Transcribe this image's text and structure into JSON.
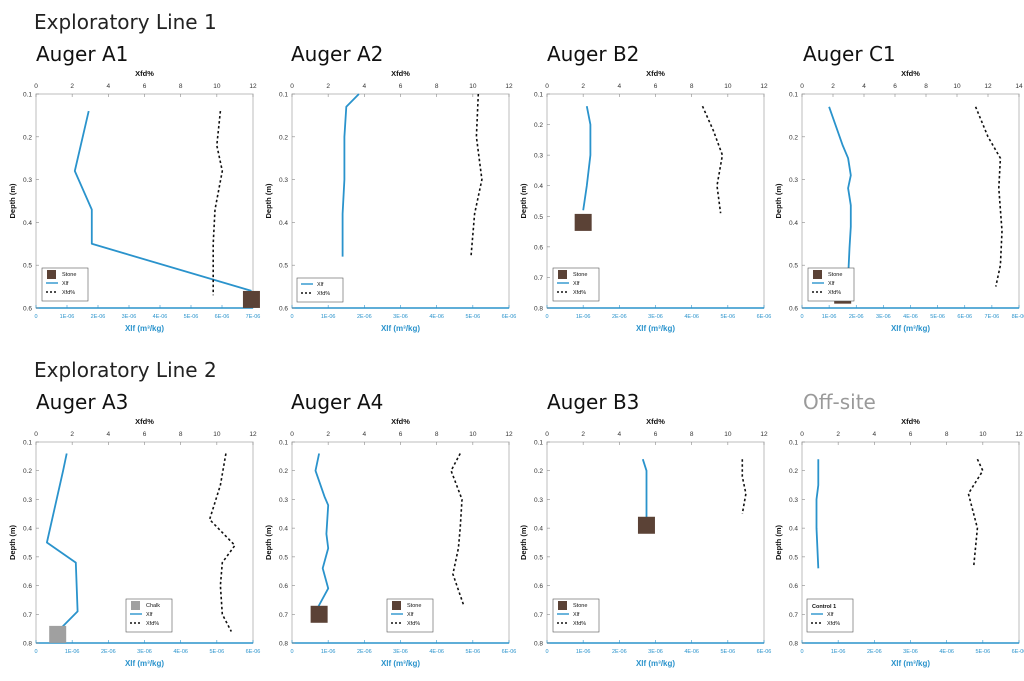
{
  "sections": [
    {
      "title": "Exploratory Line 1"
    },
    {
      "title": "Exploratory Line 2"
    }
  ],
  "colors": {
    "xlf": "#2a93cc",
    "xfd": "#111111",
    "stone": "#5b4236",
    "chalk": "#a0a0a0",
    "axis_bottom": "#2a93cc",
    "grid": "#bdbdbd"
  },
  "chart_data": [
    {
      "type": "line",
      "label": "Auger A1",
      "title": "Xfd%",
      "xlabel": "Xlf (m³/kg)",
      "ylabel": "Depth (m)",
      "x_bottom_ticks": [
        "0",
        "1E-06",
        "2E-06",
        "3E-06",
        "4E-06",
        "5E-06",
        "6E-06",
        "7E-06"
      ],
      "xlim_bottom": [
        0,
        7e-06
      ],
      "x_top_ticks": [
        "0",
        "2",
        "4",
        "6",
        "8",
        "10",
        "12"
      ],
      "xlim_top": [
        0,
        12
      ],
      "y_ticks": [
        "0.1",
        "0.2",
        "0.3",
        "0.4",
        "0.5",
        "0.6"
      ],
      "ylim": [
        0.1,
        0.6
      ],
      "series": [
        {
          "name": "Xlf",
          "axis": "bottom",
          "style": "solid",
          "points": [
            [
              1.7e-06,
              0.14
            ],
            [
              1.25e-06,
              0.28
            ],
            [
              1.8e-06,
              0.37
            ],
            [
              1.8e-06,
              0.45
            ],
            [
              6.95e-06,
              0.56
            ]
          ]
        },
        {
          "name": "Xfd%",
          "axis": "top",
          "style": "dashed",
          "points": [
            [
              10.2,
              0.14
            ],
            [
              10.0,
              0.22
            ],
            [
              10.3,
              0.28
            ],
            [
              9.9,
              0.37
            ],
            [
              9.8,
              0.45
            ],
            [
              9.8,
              0.53
            ],
            [
              9.8,
              0.57
            ]
          ]
        }
      ],
      "marker": {
        "name": "Stone",
        "x": 6.95e-06,
        "y": 0.58,
        "color": "#5b4236"
      },
      "legend": [
        "Stone",
        "Xlf",
        "Xfd%"
      ]
    },
    {
      "type": "line",
      "label": "Auger A2",
      "title": "Xfd%",
      "xlabel": "Xlf (m³/kg)",
      "ylabel": "Depth (m)",
      "x_bottom_ticks": [
        "0",
        "1E-06",
        "2E-06",
        "3E-06",
        "4E-06",
        "5E-06",
        "6E-06"
      ],
      "xlim_bottom": [
        0,
        6e-06
      ],
      "x_top_ticks": [
        "0",
        "2",
        "4",
        "6",
        "8",
        "10",
        "12"
      ],
      "xlim_top": [
        0,
        12
      ],
      "y_ticks": [
        "0.1",
        "0.2",
        "0.3",
        "0.4",
        "0.5",
        "0.6"
      ],
      "ylim": [
        0.1,
        0.6
      ],
      "series": [
        {
          "name": "Xlf",
          "axis": "bottom",
          "style": "solid",
          "points": [
            [
              1.85e-06,
              0.1
            ],
            [
              1.5e-06,
              0.13
            ],
            [
              1.45e-06,
              0.2
            ],
            [
              1.45e-06,
              0.3
            ],
            [
              1.4e-06,
              0.38
            ],
            [
              1.4e-06,
              0.48
            ]
          ]
        },
        {
          "name": "Xfd%",
          "axis": "top",
          "style": "dashed",
          "points": [
            [
              10.3,
              0.1
            ],
            [
              10.2,
              0.2
            ],
            [
              10.5,
              0.3
            ],
            [
              10.1,
              0.38
            ],
            [
              9.9,
              0.48
            ]
          ]
        }
      ],
      "legend": [
        "Xlf",
        "Xfd%"
      ]
    },
    {
      "type": "line",
      "label": "Auger B2",
      "title": "Xfd%",
      "xlabel": "Xlf (m³/kg)",
      "ylabel": "Depth (m)",
      "x_bottom_ticks": [
        "0",
        "1E-06",
        "2E-06",
        "3E-06",
        "4E-06",
        "5E-06",
        "6E-06"
      ],
      "xlim_bottom": [
        0,
        6e-06
      ],
      "x_top_ticks": [
        "0",
        "2",
        "4",
        "6",
        "8",
        "10",
        "12"
      ],
      "xlim_top": [
        0,
        12
      ],
      "y_ticks": [
        "0.1",
        "0.2",
        "0.3",
        "0.4",
        "0.5",
        "0.6",
        "0.7",
        "0.8"
      ],
      "ylim": [
        0.1,
        0.8
      ],
      "series": [
        {
          "name": "Xlf",
          "axis": "bottom",
          "style": "solid",
          "points": [
            [
              1.1e-06,
              0.14
            ],
            [
              1.2e-06,
              0.2
            ],
            [
              1.2e-06,
              0.3
            ],
            [
              1.1e-06,
              0.4
            ],
            [
              1e-06,
              0.48
            ]
          ]
        },
        {
          "name": "Xfd%",
          "axis": "top",
          "style": "dashed",
          "points": [
            [
              8.6,
              0.14
            ],
            [
              9.2,
              0.22
            ],
            [
              9.7,
              0.3
            ],
            [
              9.4,
              0.4
            ],
            [
              9.6,
              0.49
            ]
          ]
        }
      ],
      "marker": {
        "name": "Stone",
        "x": 1e-06,
        "y": 0.52,
        "color": "#5b4236"
      },
      "legend": [
        "Stone",
        "Xlf",
        "Xfd%"
      ]
    },
    {
      "type": "line",
      "label": "Auger C1",
      "title": "Xfd%",
      "xlabel": "Xlf (m³/kg)",
      "ylabel": "Depth (m)",
      "x_bottom_ticks": [
        "0",
        "1E-06",
        "2E-06",
        "3E-06",
        "4E-06",
        "5E-06",
        "6E-06",
        "7E-06",
        "8E-06"
      ],
      "xlim_bottom": [
        0,
        8e-06
      ],
      "x_top_ticks": [
        "0",
        "2",
        "4",
        "6",
        "8",
        "10",
        "12",
        "14"
      ],
      "xlim_top": [
        0,
        14
      ],
      "y_ticks": [
        "0.1",
        "0.2",
        "0.3",
        "0.4",
        "0.5",
        "0.6"
      ],
      "ylim": [
        0.1,
        0.6
      ],
      "series": [
        {
          "name": "Xlf",
          "axis": "bottom",
          "style": "solid",
          "points": [
            [
              1e-06,
              0.13
            ],
            [
              1.5e-06,
              0.22
            ],
            [
              1.7e-06,
              0.25
            ],
            [
              1.8e-06,
              0.29
            ],
            [
              1.7e-06,
              0.32
            ],
            [
              1.8e-06,
              0.36
            ],
            [
              1.8e-06,
              0.41
            ],
            [
              1.75e-06,
              0.46
            ],
            [
              1.7e-06,
              0.53
            ],
            [
              1.6e-06,
              0.55
            ]
          ]
        },
        {
          "name": "Xfd%",
          "axis": "top",
          "style": "dashed",
          "points": [
            [
              11.2,
              0.13
            ],
            [
              12.0,
              0.2
            ],
            [
              12.8,
              0.25
            ],
            [
              12.7,
              0.32
            ],
            [
              12.9,
              0.42
            ],
            [
              12.8,
              0.5
            ],
            [
              12.5,
              0.55
            ]
          ]
        }
      ],
      "marker": {
        "name": "Stone",
        "x": 1.5e-06,
        "y": 0.57,
        "color": "#5b4236"
      },
      "legend": [
        "Stone",
        "Xlf",
        "Xfd%"
      ]
    },
    {
      "type": "line",
      "label": "Auger A3",
      "title": "Xfd%",
      "xlabel": "Xlf (m³/kg)",
      "ylabel": "Depth (m)",
      "x_bottom_ticks": [
        "0",
        "1E-06",
        "2E-06",
        "3E-06",
        "4E-06",
        "5E-06",
        "6E-06"
      ],
      "xlim_bottom": [
        0,
        6e-06
      ],
      "x_top_ticks": [
        "0",
        "2",
        "4",
        "6",
        "8",
        "10",
        "12"
      ],
      "xlim_top": [
        0,
        12
      ],
      "y_ticks": [
        "0.1",
        "0.2",
        "0.3",
        "0.4",
        "0.5",
        "0.6",
        "0.7",
        "0.8"
      ],
      "ylim": [
        0.1,
        0.8
      ],
      "series": [
        {
          "name": "Xlf",
          "axis": "bottom",
          "style": "solid",
          "points": [
            [
              8.5e-07,
              0.14
            ],
            [
              7.5e-07,
              0.2
            ],
            [
              3e-07,
              0.45
            ],
            [
              1.1e-06,
              0.52
            ],
            [
              1.15e-06,
              0.69
            ],
            [
              6e-07,
              0.76
            ]
          ]
        },
        {
          "name": "Xfd%",
          "axis": "top",
          "style": "dashed",
          "points": [
            [
              10.5,
              0.14
            ],
            [
              10.2,
              0.25
            ],
            [
              9.6,
              0.37
            ],
            [
              11.0,
              0.46
            ],
            [
              10.3,
              0.52
            ],
            [
              10.2,
              0.6
            ],
            [
              10.3,
              0.7
            ],
            [
              10.8,
              0.76
            ]
          ]
        }
      ],
      "marker": {
        "name": "Chalk",
        "x": 6e-07,
        "y": 0.77,
        "color": "#a0a0a0"
      },
      "legend": [
        "Chalk",
        "Xlf",
        "Xfd%"
      ]
    },
    {
      "type": "line",
      "label": "Auger A4",
      "title": "Xfd%",
      "xlabel": "Xlf (m³/kg)",
      "ylabel": "Depth (m)",
      "x_bottom_ticks": [
        "0",
        "1E-06",
        "2E-06",
        "3E-06",
        "4E-06",
        "5E-06",
        "6E-06"
      ],
      "xlim_bottom": [
        0,
        6e-06
      ],
      "x_top_ticks": [
        "0",
        "2",
        "4",
        "6",
        "8",
        "10",
        "12"
      ],
      "xlim_top": [
        0,
        12
      ],
      "y_ticks": [
        "0.1",
        "0.2",
        "0.3",
        "0.4",
        "0.5",
        "0.6",
        "0.7",
        "0.8"
      ],
      "ylim": [
        0.1,
        0.8
      ],
      "series": [
        {
          "name": "Xlf",
          "axis": "bottom",
          "style": "solid",
          "points": [
            [
              7.5e-07,
              0.14
            ],
            [
              6.5e-07,
              0.2
            ],
            [
              9e-07,
              0.29
            ],
            [
              1e-06,
              0.32
            ],
            [
              9.5e-07,
              0.42
            ],
            [
              1e-06,
              0.47
            ],
            [
              8.5e-07,
              0.54
            ],
            [
              1e-06,
              0.61
            ],
            [
              7e-07,
              0.68
            ]
          ]
        },
        {
          "name": "Xfd%",
          "axis": "top",
          "style": "dashed",
          "points": [
            [
              9.3,
              0.14
            ],
            [
              8.8,
              0.2
            ],
            [
              9.4,
              0.3
            ],
            [
              9.3,
              0.4
            ],
            [
              9.2,
              0.47
            ],
            [
              8.9,
              0.56
            ],
            [
              9.5,
              0.67
            ]
          ]
        }
      ],
      "marker": {
        "name": "Stone",
        "x": 7.5e-07,
        "y": 0.7,
        "color": "#5b4236"
      },
      "legend": [
        "Stone",
        "Xlf",
        "Xfd%"
      ]
    },
    {
      "type": "line",
      "label": "Auger B3",
      "title": "Xfd%",
      "xlabel": "Xlf (m³/kg)",
      "ylabel": "Depth (m)",
      "x_bottom_ticks": [
        "0",
        "1E-06",
        "2E-06",
        "3E-06",
        "4E-06",
        "5E-06",
        "6E-06"
      ],
      "xlim_bottom": [
        0,
        6e-06
      ],
      "x_top_ticks": [
        "0",
        "2",
        "4",
        "6",
        "8",
        "10",
        "12"
      ],
      "xlim_top": [
        0,
        12
      ],
      "y_ticks": [
        "0.1",
        "0.2",
        "0.3",
        "0.4",
        "0.5",
        "0.6",
        "0.7",
        "0.8"
      ],
      "ylim": [
        0.1,
        0.8
      ],
      "series": [
        {
          "name": "Xlf",
          "axis": "bottom",
          "style": "solid",
          "points": [
            [
              2.65e-06,
              0.16
            ],
            [
              2.75e-06,
              0.2
            ],
            [
              2.75e-06,
              0.3
            ],
            [
              2.75e-06,
              0.37
            ]
          ]
        },
        {
          "name": "Xfd%",
          "axis": "top",
          "style": "dashed",
          "points": [
            [
              10.8,
              0.16
            ],
            [
              10.8,
              0.22
            ],
            [
              11.0,
              0.28
            ],
            [
              10.8,
              0.35
            ]
          ]
        }
      ],
      "marker": {
        "name": "Stone",
        "x": 2.75e-06,
        "y": 0.39,
        "color": "#5b4236"
      },
      "legend": [
        "Stone",
        "Xlf",
        "Xfd%"
      ]
    },
    {
      "type": "line",
      "label": "Off-site",
      "title": "Xfd%",
      "xlabel": "Xlf (m³/kg)",
      "ylabel": "Depth (m)",
      "x_bottom_ticks": [
        "0",
        "1E-06",
        "2E-06",
        "3E-06",
        "4E-06",
        "5E-06",
        "6E-06"
      ],
      "xlim_bottom": [
        0,
        6e-06
      ],
      "x_top_ticks": [
        "0",
        "2",
        "4",
        "6",
        "8",
        "10",
        "12"
      ],
      "xlim_top": [
        0,
        12
      ],
      "y_ticks": [
        "0.1",
        "0.2",
        "0.3",
        "0.4",
        "0.5",
        "0.6",
        "0.7",
        "0.8"
      ],
      "ylim": [
        0.1,
        0.8
      ],
      "series": [
        {
          "name": "Xlf",
          "axis": "bottom",
          "style": "solid",
          "points": [
            [
              4.5e-07,
              0.16
            ],
            [
              4.5e-07,
              0.25
            ],
            [
              4e-07,
              0.3
            ],
            [
              4e-07,
              0.4
            ],
            [
              4.5e-07,
              0.54
            ]
          ]
        },
        {
          "name": "Xfd%",
          "axis": "top",
          "style": "dashed",
          "points": [
            [
              9.7,
              0.16
            ],
            [
              10.0,
              0.2
            ],
            [
              9.2,
              0.28
            ],
            [
              9.7,
              0.4
            ],
            [
              9.5,
              0.53
            ]
          ]
        }
      ],
      "legend_title": "Control 1",
      "legend": [
        "Xlf",
        "Xfd%"
      ]
    }
  ]
}
